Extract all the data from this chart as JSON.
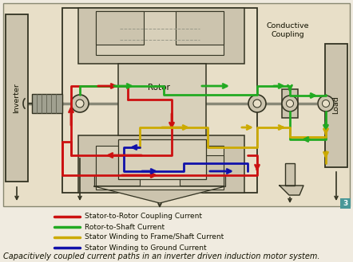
{
  "bg_color": "#e8dfc8",
  "outer_bg": "#f0ebe0",
  "title": "Capacitively coupled current paths in an inverter driven induction motor system.",
  "legend_items": [
    {
      "label": "Stator-to-Rotor Coupling Current",
      "color": "#cc1111"
    },
    {
      "label": "Rotor-to-Shaft Current",
      "color": "#22aa22"
    },
    {
      "label": "Stator Winding to Frame/Shaft Current",
      "color": "#ccaa00"
    },
    {
      "label": "Stator Winding to Ground Current",
      "color": "#1111aa"
    }
  ],
  "badge_color": "#4a9898",
  "edge_color": "#555544",
  "dark_edge": "#333322",
  "frame_fill": "#ccc4ae",
  "inner_fill": "#d8d0ba"
}
